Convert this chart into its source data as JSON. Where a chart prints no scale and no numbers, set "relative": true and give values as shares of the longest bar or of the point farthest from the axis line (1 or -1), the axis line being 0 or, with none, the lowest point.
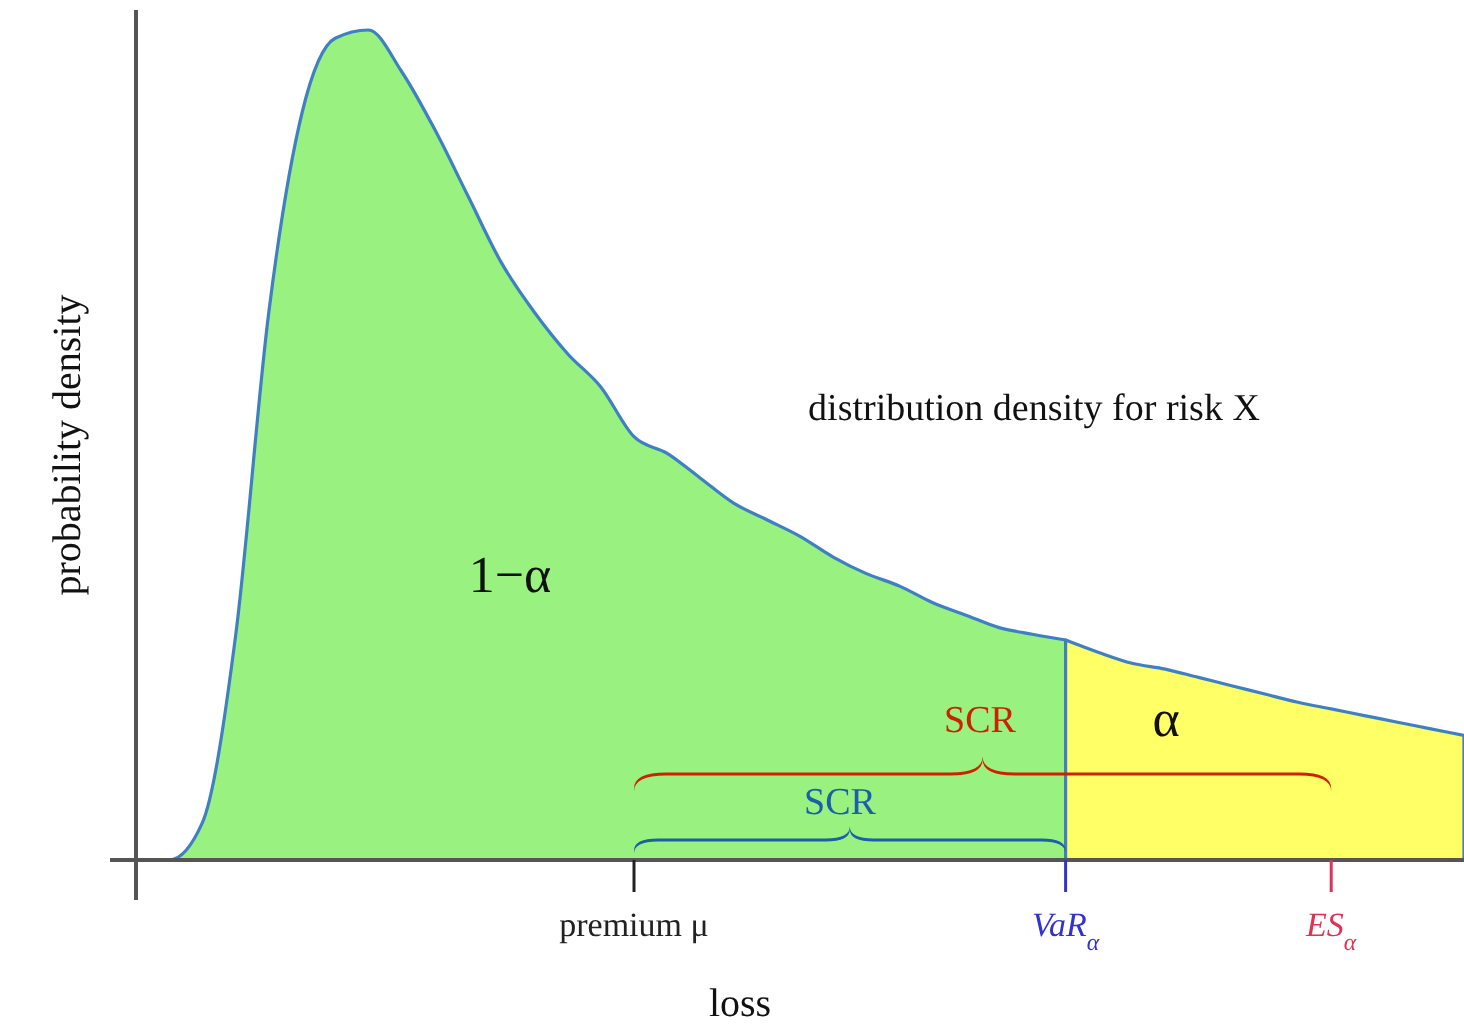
{
  "chart_data": {
    "type": "area",
    "relative": true,
    "xlabel": "loss",
    "ylabel": "probability density",
    "categories": [
      null,
      null,
      null,
      null,
      null,
      null,
      null,
      null,
      null,
      null,
      null,
      null,
      null,
      null,
      null,
      "premium μ",
      null,
      null,
      null,
      null,
      null,
      null,
      null,
      null,
      null,
      null,
      null,
      null,
      "VaR$_{α}$",
      null,
      null,
      null,
      null,
      null,
      null,
      null,
      "ES$_{α}$",
      null,
      null,
      null,
      null
    ],
    "series": [
      {
        "color": "#99f27f",
        "values": [
          0,
          0,
          0.045,
          0.27,
          0.66,
          0.9,
          0.99,
          1,
          0.95,
          0.88,
          0.8,
          0.72,
          0.66,
          0.61,
          0.57,
          0.51,
          0.49,
          0.46,
          0.43,
          0.41,
          0.39,
          0.365,
          0.345,
          0.33,
          0.31,
          0.295,
          0.28,
          0.272,
          0.265,
          null,
          null,
          null,
          null,
          null,
          null,
          null,
          null,
          null,
          null,
          null,
          null
        ]
      },
      {
        "color": "#ffff66",
        "values": [
          null,
          null,
          null,
          null,
          null,
          null,
          null,
          null,
          null,
          null,
          null,
          null,
          null,
          null,
          null,
          null,
          null,
          null,
          null,
          null,
          null,
          null,
          null,
          null,
          null,
          null,
          null,
          null,
          0.265,
          0.25,
          0.237,
          0.23,
          0.22,
          0.21,
          0.2,
          0.19,
          0.182,
          0.174,
          0.166,
          0.158,
          0.15
        ]
      }
    ],
    "annotations": [
      "distribution density for risk X",
      "1−α",
      "SCR",
      "SCR",
      "α"
    ]
  }
}
